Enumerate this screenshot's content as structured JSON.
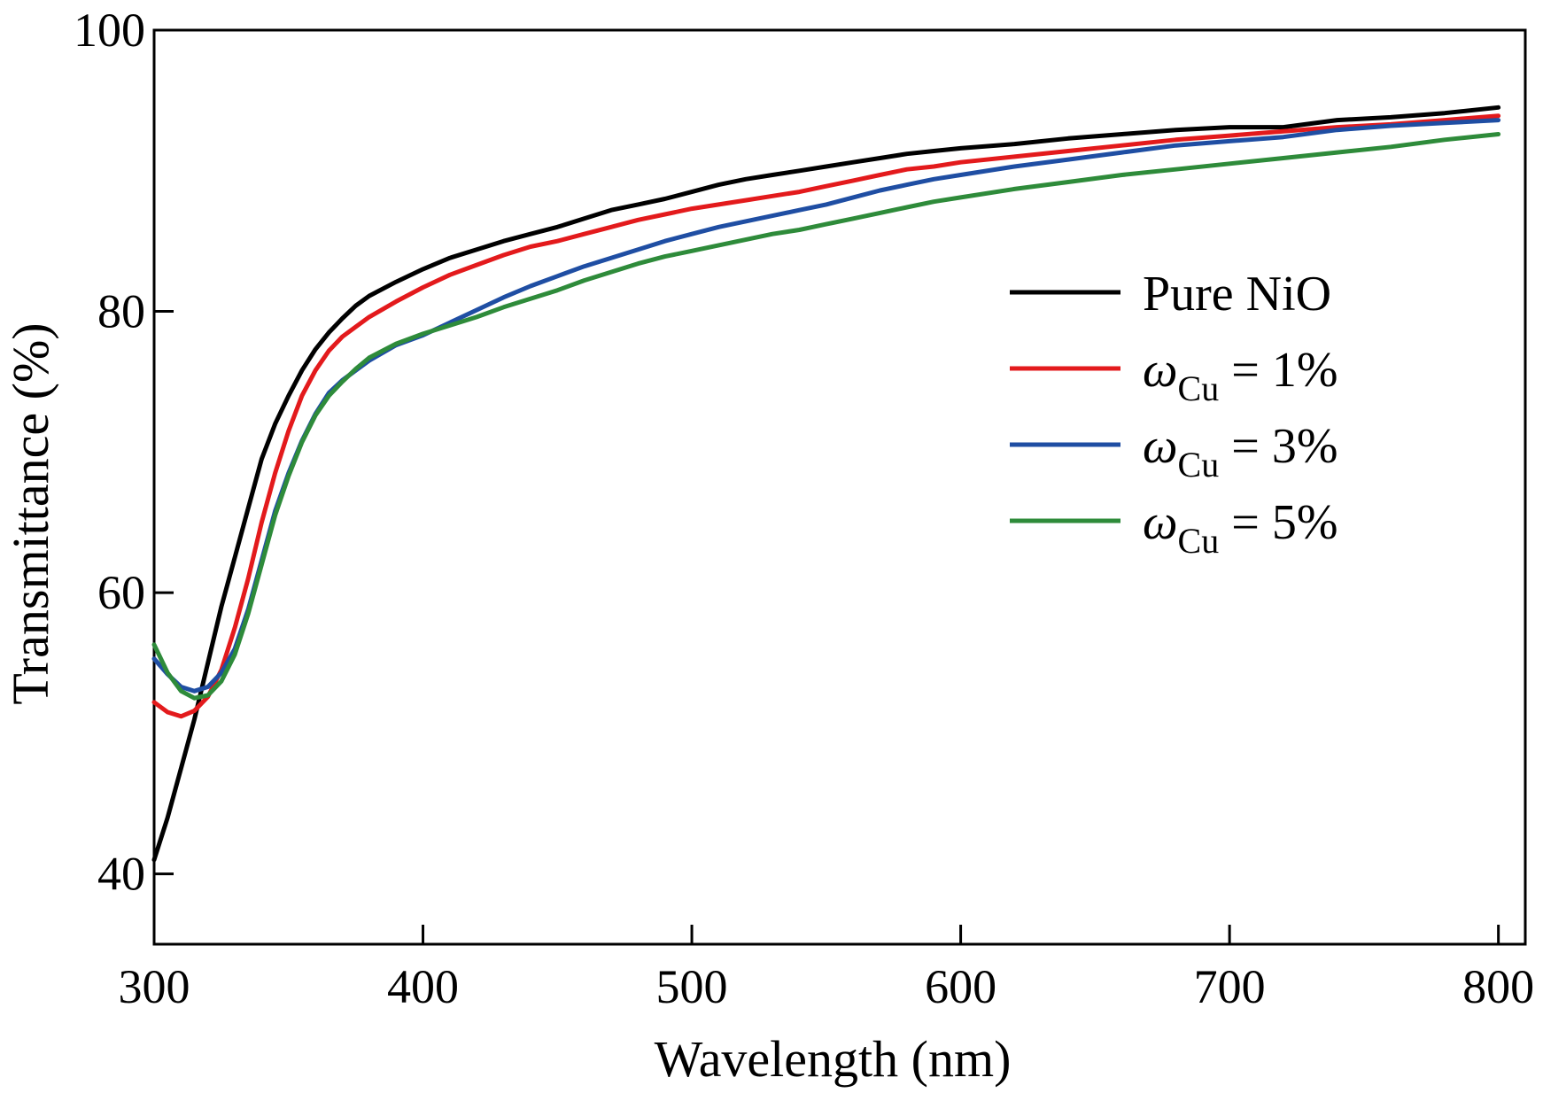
{
  "chart_data": {
    "type": "line",
    "title": "",
    "xlabel": "Wavelength (nm)",
    "ylabel": "Transmittance (%)",
    "xlim": [
      300,
      810
    ],
    "ylim": [
      35,
      100
    ],
    "xticks": [
      300,
      400,
      500,
      600,
      700,
      800
    ],
    "yticks": [
      40,
      60,
      80,
      100
    ],
    "x_tick_labels": [
      "300",
      "400",
      "500",
      "600",
      "700",
      "800"
    ],
    "y_tick_labels": [
      "40",
      "60",
      "80",
      "100"
    ],
    "grid": false,
    "legend_position": "right",
    "series": [
      {
        "name": "Pure NiO",
        "legend_symbol": "",
        "legend_sub": "",
        "legend_rest": "Pure NiO",
        "color": "#000000",
        "points": [
          [
            300,
            41
          ],
          [
            305,
            44
          ],
          [
            310,
            47.5
          ],
          [
            315,
            51
          ],
          [
            320,
            55
          ],
          [
            325,
            59
          ],
          [
            330,
            62.5
          ],
          [
            335,
            66
          ],
          [
            340,
            69.5
          ],
          [
            345,
            72
          ],
          [
            350,
            74
          ],
          [
            355,
            75.8
          ],
          [
            360,
            77.3
          ],
          [
            365,
            78.5
          ],
          [
            370,
            79.5
          ],
          [
            375,
            80.4
          ],
          [
            380,
            81.1
          ],
          [
            390,
            82.1
          ],
          [
            400,
            83
          ],
          [
            410,
            83.8
          ],
          [
            420,
            84.4
          ],
          [
            430,
            85
          ],
          [
            440,
            85.5
          ],
          [
            450,
            86
          ],
          [
            460,
            86.6
          ],
          [
            470,
            87.2
          ],
          [
            480,
            87.6
          ],
          [
            490,
            88
          ],
          [
            500,
            88.5
          ],
          [
            510,
            89
          ],
          [
            520,
            89.4
          ],
          [
            530,
            89.7
          ],
          [
            540,
            90
          ],
          [
            550,
            90.3
          ],
          [
            560,
            90.6
          ],
          [
            570,
            90.9
          ],
          [
            580,
            91.2
          ],
          [
            590,
            91.4
          ],
          [
            600,
            91.6
          ],
          [
            620,
            91.9
          ],
          [
            640,
            92.3
          ],
          [
            660,
            92.6
          ],
          [
            680,
            92.9
          ],
          [
            700,
            93.1
          ],
          [
            720,
            93.1
          ],
          [
            740,
            93.6
          ],
          [
            760,
            93.8
          ],
          [
            780,
            94.1
          ],
          [
            800,
            94.5
          ]
        ]
      },
      {
        "name": "ωCu = 1%",
        "legend_symbol": "ω",
        "legend_sub": "Cu",
        "legend_rest": " = 1%",
        "color": "#e31a1c",
        "points": [
          [
            300,
            52.2
          ],
          [
            305,
            51.5
          ],
          [
            310,
            51.2
          ],
          [
            315,
            51.6
          ],
          [
            320,
            52.6
          ],
          [
            325,
            54.5
          ],
          [
            330,
            57.5
          ],
          [
            335,
            61
          ],
          [
            340,
            65
          ],
          [
            345,
            68.5
          ],
          [
            350,
            71.5
          ],
          [
            355,
            74
          ],
          [
            360,
            75.8
          ],
          [
            365,
            77.2
          ],
          [
            370,
            78.2
          ],
          [
            375,
            78.9
          ],
          [
            380,
            79.6
          ],
          [
            390,
            80.7
          ],
          [
            400,
            81.7
          ],
          [
            410,
            82.6
          ],
          [
            420,
            83.3
          ],
          [
            430,
            84
          ],
          [
            440,
            84.6
          ],
          [
            450,
            85
          ],
          [
            460,
            85.5
          ],
          [
            470,
            86
          ],
          [
            480,
            86.5
          ],
          [
            490,
            86.9
          ],
          [
            500,
            87.3
          ],
          [
            510,
            87.6
          ],
          [
            520,
            87.9
          ],
          [
            530,
            88.2
          ],
          [
            540,
            88.5
          ],
          [
            550,
            88.9
          ],
          [
            560,
            89.3
          ],
          [
            570,
            89.7
          ],
          [
            580,
            90.1
          ],
          [
            590,
            90.3
          ],
          [
            600,
            90.6
          ],
          [
            620,
            91
          ],
          [
            640,
            91.4
          ],
          [
            660,
            91.8
          ],
          [
            680,
            92.2
          ],
          [
            700,
            92.5
          ],
          [
            720,
            92.8
          ],
          [
            740,
            93.1
          ],
          [
            760,
            93.3
          ],
          [
            780,
            93.6
          ],
          [
            800,
            93.9
          ]
        ]
      },
      {
        "name": "ωCu = 3%",
        "legend_symbol": "ω",
        "legend_sub": "Cu",
        "legend_rest": " = 3%",
        "color": "#1f4ea3",
        "points": [
          [
            300,
            55.3
          ],
          [
            305,
            54.2
          ],
          [
            310,
            53.3
          ],
          [
            315,
            53
          ],
          [
            320,
            53.3
          ],
          [
            325,
            54.3
          ],
          [
            330,
            56
          ],
          [
            335,
            58.8
          ],
          [
            340,
            62.3
          ],
          [
            345,
            65.8
          ],
          [
            350,
            68.5
          ],
          [
            355,
            70.8
          ],
          [
            360,
            72.7
          ],
          [
            365,
            74.2
          ],
          [
            370,
            75.1
          ],
          [
            375,
            75.8
          ],
          [
            380,
            76.5
          ],
          [
            390,
            77.6
          ],
          [
            400,
            78.3
          ],
          [
            410,
            79.2
          ],
          [
            420,
            80.1
          ],
          [
            430,
            81
          ],
          [
            440,
            81.8
          ],
          [
            450,
            82.5
          ],
          [
            460,
            83.2
          ],
          [
            470,
            83.8
          ],
          [
            480,
            84.4
          ],
          [
            490,
            85
          ],
          [
            500,
            85.5
          ],
          [
            510,
            86
          ],
          [
            520,
            86.4
          ],
          [
            530,
            86.8
          ],
          [
            540,
            87.2
          ],
          [
            550,
            87.6
          ],
          [
            560,
            88.1
          ],
          [
            570,
            88.6
          ],
          [
            580,
            89
          ],
          [
            590,
            89.4
          ],
          [
            600,
            89.7
          ],
          [
            620,
            90.3
          ],
          [
            640,
            90.8
          ],
          [
            660,
            91.3
          ],
          [
            680,
            91.8
          ],
          [
            700,
            92.1
          ],
          [
            720,
            92.4
          ],
          [
            740,
            92.9
          ],
          [
            760,
            93.2
          ],
          [
            780,
            93.4
          ],
          [
            800,
            93.6
          ]
        ]
      },
      {
        "name": "ωCu = 5%",
        "legend_symbol": "ω",
        "legend_sub": "Cu",
        "legend_rest": " = 5%",
        "color": "#2e8b3a",
        "points": [
          [
            300,
            56.3
          ],
          [
            305,
            54.3
          ],
          [
            310,
            53
          ],
          [
            315,
            52.5
          ],
          [
            320,
            52.7
          ],
          [
            325,
            53.7
          ],
          [
            330,
            55.6
          ],
          [
            335,
            58.5
          ],
          [
            340,
            62
          ],
          [
            345,
            65.5
          ],
          [
            350,
            68.3
          ],
          [
            355,
            70.7
          ],
          [
            360,
            72.6
          ],
          [
            365,
            74
          ],
          [
            370,
            75
          ],
          [
            375,
            75.9
          ],
          [
            380,
            76.7
          ],
          [
            390,
            77.7
          ],
          [
            400,
            78.4
          ],
          [
            410,
            79
          ],
          [
            420,
            79.6
          ],
          [
            430,
            80.3
          ],
          [
            440,
            80.9
          ],
          [
            450,
            81.5
          ],
          [
            460,
            82.2
          ],
          [
            470,
            82.8
          ],
          [
            480,
            83.4
          ],
          [
            490,
            83.9
          ],
          [
            500,
            84.3
          ],
          [
            510,
            84.7
          ],
          [
            520,
            85.1
          ],
          [
            530,
            85.5
          ],
          [
            540,
            85.8
          ],
          [
            550,
            86.2
          ],
          [
            560,
            86.6
          ],
          [
            570,
            87
          ],
          [
            580,
            87.4
          ],
          [
            590,
            87.8
          ],
          [
            600,
            88.1
          ],
          [
            620,
            88.7
          ],
          [
            640,
            89.2
          ],
          [
            660,
            89.7
          ],
          [
            680,
            90.1
          ],
          [
            700,
            90.5
          ],
          [
            720,
            90.9
          ],
          [
            740,
            91.3
          ],
          [
            760,
            91.7
          ],
          [
            780,
            92.2
          ],
          [
            800,
            92.6
          ]
        ]
      }
    ]
  }
}
